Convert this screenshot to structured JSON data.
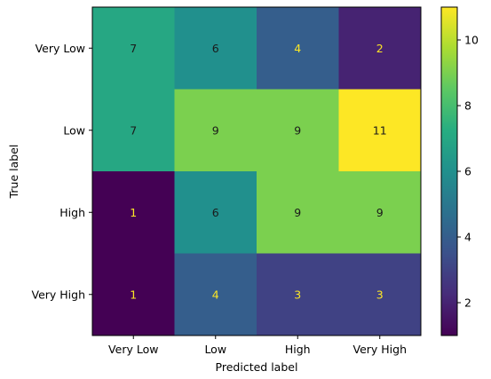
{
  "chart_data": {
    "type": "heatmap",
    "xlabel": "Predicted label",
    "ylabel": "True label",
    "x_categories": [
      "Very Low",
      "Low",
      "High",
      "Very High"
    ],
    "y_categories": [
      "Very Low",
      "Low",
      "High",
      "Very High"
    ],
    "values": [
      [
        7,
        6,
        4,
        2
      ],
      [
        7,
        9,
        9,
        11
      ],
      [
        1,
        6,
        9,
        9
      ],
      [
        1,
        4,
        3,
        3
      ]
    ],
    "colormap": "viridis",
    "color_range": [
      1,
      11
    ],
    "colorbar_ticks": [
      2,
      4,
      6,
      8,
      10
    ],
    "cell_text_colors": {
      "on_dark": "#fde725",
      "on_light": "#1a1a1a"
    }
  }
}
